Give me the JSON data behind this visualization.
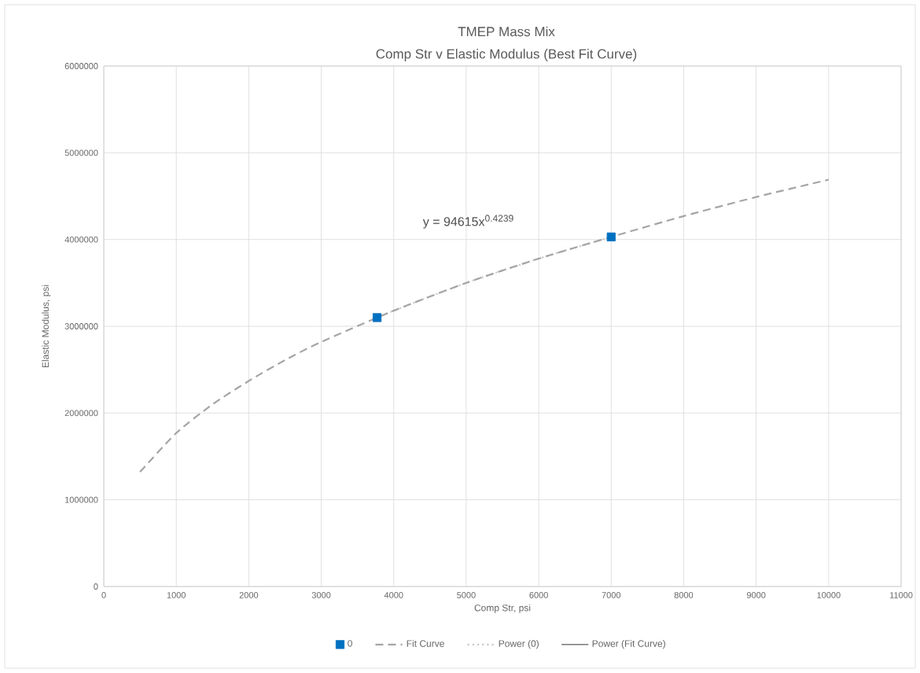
{
  "chart_data": {
    "type": "scatter",
    "title": "TMEP Mass Mix",
    "subtitle": "Comp Str v Elastic Modulus (Best Fit Curve)",
    "xlabel": "Comp Str, psi",
    "ylabel": "Elastic Modulus, psi",
    "annotations": [
      "y = 94615x$^{0.4239}$"
    ],
    "series": [
      {
        "name": "0",
        "marker": "square",
        "color": "#0070c0",
        "x": [
          3770,
          7000
        ],
        "values": [
          3100000,
          4030000
        ]
      },
      {
        "name": "Fit Curve",
        "type": "line",
        "line_style": "dashed",
        "color": "#a5a5a5",
        "x": [
          500,
          1000,
          1500,
          2000,
          2500,
          3000,
          4000,
          5000,
          6000,
          7000,
          8000,
          9000,
          10000
        ],
        "values": [
          1320000,
          1770000,
          2100000,
          2370000,
          2610000,
          2820000,
          3180000,
          3500000,
          3780000,
          4030000,
          4270000,
          4490000,
          4690000
        ]
      },
      {
        "name": "Power (0)",
        "type": "line",
        "line_style": "dotted",
        "color": "#c9c9c9",
        "x": [
          3770,
          4000,
          5000,
          6000,
          7000
        ],
        "values": [
          3100000,
          3180000,
          3500000,
          3780000,
          4030000
        ]
      },
      {
        "name": "Power (Fit Curve)",
        "type": "line",
        "values": [
          null
        ]
      }
    ],
    "xlim": [
      0,
      11000
    ],
    "ylim": [
      0,
      6000000
    ],
    "xticks": [
      0,
      1000,
      2000,
      3000,
      4000,
      5000,
      6000,
      7000,
      8000,
      9000,
      10000,
      11000
    ],
    "yticks": [
      0,
      1000000,
      2000000,
      3000000,
      4000000,
      5000000,
      6000000
    ],
    "grid": true,
    "legend": "bottom"
  }
}
